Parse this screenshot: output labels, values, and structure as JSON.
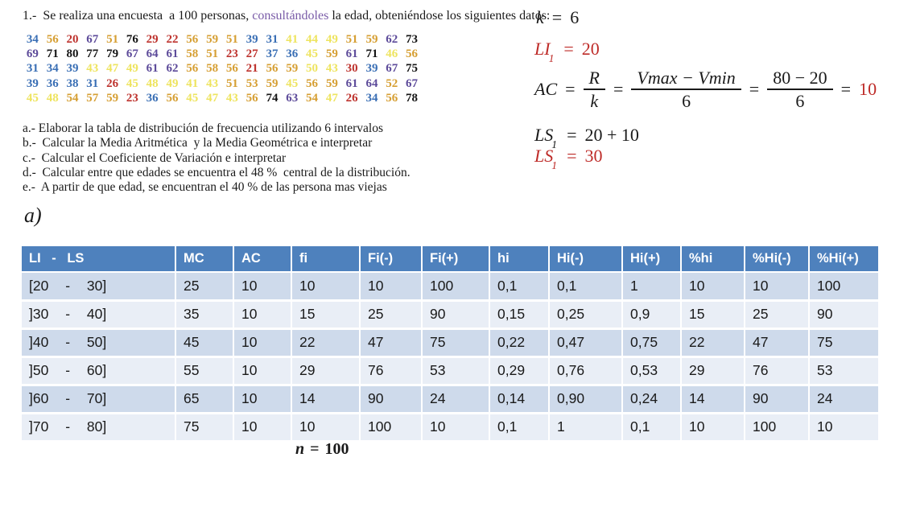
{
  "palette": {
    "header-blue": "#4E81BD",
    "row-dark": "#CEDAEB",
    "row-light": "#E9EEF6",
    "accent-red": "#BE2B28",
    "word-purple": "#7A5CA8",
    "num-blue": "#3A6FB5",
    "num-gold": "#D69F33",
    "num-red": "#BE332E",
    "num-purple": "#5D4B9A",
    "num-yellow": "#EEE45F",
    "num-black": "#141414"
  },
  "title": {
    "prefix": "1.-  Se realiza una encuesta  a 100 personas, ",
    "highlight": "consultándoles",
    "suffix": " la edad, obteniéndose los siguientes datos:"
  },
  "data_grid": {
    "rows": [
      [
        [
          "34",
          "b"
        ],
        [
          "56",
          "g"
        ],
        [
          "20",
          "r"
        ],
        [
          "67",
          "p"
        ],
        [
          "51",
          "g"
        ],
        [
          "76",
          "k"
        ],
        [
          "29",
          "r"
        ],
        [
          "22",
          "r"
        ],
        [
          "56",
          "g"
        ],
        [
          "59",
          "g"
        ],
        [
          "51",
          "g"
        ],
        [
          "39",
          "b"
        ],
        [
          "31",
          "b"
        ],
        [
          "41",
          "y"
        ],
        [
          "44",
          "y"
        ],
        [
          "49",
          "y"
        ],
        [
          "51",
          "g"
        ],
        [
          "59",
          "g"
        ],
        [
          "62",
          "p"
        ],
        [
          "73",
          "k"
        ]
      ],
      [
        [
          "69",
          "p"
        ],
        [
          "71",
          "k"
        ],
        [
          "80",
          "k"
        ],
        [
          "77",
          "k"
        ],
        [
          "79",
          "k"
        ],
        [
          "67",
          "p"
        ],
        [
          "64",
          "p"
        ],
        [
          "61",
          "p"
        ],
        [
          "58",
          "g"
        ],
        [
          "51",
          "g"
        ],
        [
          "23",
          "r"
        ],
        [
          "27",
          "r"
        ],
        [
          "37",
          "b"
        ],
        [
          "36",
          "b"
        ],
        [
          "45",
          "y"
        ],
        [
          "59",
          "g"
        ],
        [
          "61",
          "p"
        ],
        [
          "71",
          "k"
        ],
        [
          "46",
          "y"
        ],
        [
          "56",
          "g"
        ]
      ],
      [
        [
          "31",
          "b"
        ],
        [
          "34",
          "b"
        ],
        [
          "39",
          "b"
        ],
        [
          "43",
          "y"
        ],
        [
          "47",
          "y"
        ],
        [
          "49",
          "y"
        ],
        [
          "61",
          "p"
        ],
        [
          "62",
          "p"
        ],
        [
          "56",
          "g"
        ],
        [
          "58",
          "g"
        ],
        [
          "56",
          "g"
        ],
        [
          "21",
          "r"
        ],
        [
          "56",
          "g"
        ],
        [
          "59",
          "g"
        ],
        [
          "50",
          "y"
        ],
        [
          "43",
          "y"
        ],
        [
          "30",
          "r"
        ],
        [
          "39",
          "b"
        ],
        [
          "67",
          "p"
        ],
        [
          "75",
          "k"
        ]
      ],
      [
        [
          "39",
          "b"
        ],
        [
          "36",
          "b"
        ],
        [
          "38",
          "b"
        ],
        [
          "31",
          "b"
        ],
        [
          "26",
          "r"
        ],
        [
          "45",
          "y"
        ],
        [
          "48",
          "y"
        ],
        [
          "49",
          "y"
        ],
        [
          "41",
          "y"
        ],
        [
          "43",
          "y"
        ],
        [
          "51",
          "g"
        ],
        [
          "53",
          "g"
        ],
        [
          "59",
          "g"
        ],
        [
          "45",
          "y"
        ],
        [
          "56",
          "g"
        ],
        [
          "59",
          "g"
        ],
        [
          "61",
          "p"
        ],
        [
          "64",
          "p"
        ],
        [
          "52",
          "g"
        ],
        [
          "67",
          "p"
        ]
      ],
      [
        [
          "45",
          "y"
        ],
        [
          "48",
          "y"
        ],
        [
          "54",
          "g"
        ],
        [
          "57",
          "g"
        ],
        [
          "59",
          "g"
        ],
        [
          "23",
          "r"
        ],
        [
          "36",
          "b"
        ],
        [
          "56",
          "g"
        ],
        [
          "45",
          "y"
        ],
        [
          "47",
          "y"
        ],
        [
          "43",
          "y"
        ],
        [
          "56",
          "g"
        ],
        [
          "74",
          "k"
        ],
        [
          "63",
          "p"
        ],
        [
          "54",
          "g"
        ],
        [
          "47",
          "y"
        ],
        [
          "26",
          "r"
        ],
        [
          "34",
          "b"
        ],
        [
          "56",
          "g"
        ],
        [
          "78",
          "k"
        ]
      ]
    ]
  },
  "questions": [
    "a.- Elaborar la tabla de distribución de frecuencia utilizando 6 intervalos",
    "b.-  Calcular la Media Aritmética  y la Media Geométrica e interpretar",
    "c.-  Calcular el Coeficiente de Variación e interpretar",
    "d.-  Calcular entre que edades se encuentra el 48 %  central de la distribución.",
    "e.-  A partir de que edad, se encuentran el 40 % de las persona mas viejas"
  ],
  "formulas": {
    "k": {
      "var": "k",
      "eq": "=",
      "val": "6"
    },
    "li1": {
      "var": "LI",
      "sub": "1",
      "eq": "=",
      "val": "20"
    },
    "ac": {
      "var": "AC",
      "eq": "=",
      "f1num": "R",
      "f1den": "k",
      "f2num": "Vmax  − Vmin",
      "f2den": "6",
      "f3num": "80 − 20",
      "f3den": "6",
      "result": "10"
    },
    "ls1a": {
      "var": "LS",
      "sub": "1",
      "eq": "=",
      "val": "20 + 10"
    },
    "ls1b": {
      "var": "LS",
      "sub": "1",
      "eq": "=",
      "val": "30"
    }
  },
  "section_label": "a)",
  "table": {
    "columns": [
      "LI - LS",
      "MC",
      "AC",
      "fi",
      "Fi(-)",
      "Fi(+)",
      "hi",
      "Hi(-)",
      "Hi(+)",
      "%hi",
      "%Hi(-)",
      "%Hi(+)"
    ],
    "rows": [
      [
        "[20 - 30]",
        "25",
        "10",
        "10",
        "10",
        "100",
        "0,1",
        "0,1",
        "1",
        "10",
        "10",
        "100"
      ],
      [
        "]30 - 40]",
        "35",
        "10",
        "15",
        "25",
        "90",
        "0,15",
        "0,25",
        "0,9",
        "15",
        "25",
        "90"
      ],
      [
        "]40 - 50]",
        "45",
        "10",
        "22",
        "47",
        "75",
        "0,22",
        "0,47",
        "0,75",
        "22",
        "47",
        "75"
      ],
      [
        "]50 - 60]",
        "55",
        "10",
        "29",
        "76",
        "53",
        "0,29",
        "0,76",
        "0,53",
        "29",
        "76",
        "53"
      ],
      [
        "]60 - 70]",
        "65",
        "10",
        "14",
        "90",
        "24",
        "0,14",
        "0,90",
        "0,24",
        "14",
        "90",
        "24"
      ],
      [
        "]70 - 80]",
        "75",
        "10",
        "10",
        "100",
        "10",
        "0,1",
        "1",
        "0,1",
        "10",
        "100",
        "10"
      ]
    ]
  },
  "n_total": {
    "var": "n",
    "eq": "=",
    "val": "100"
  }
}
